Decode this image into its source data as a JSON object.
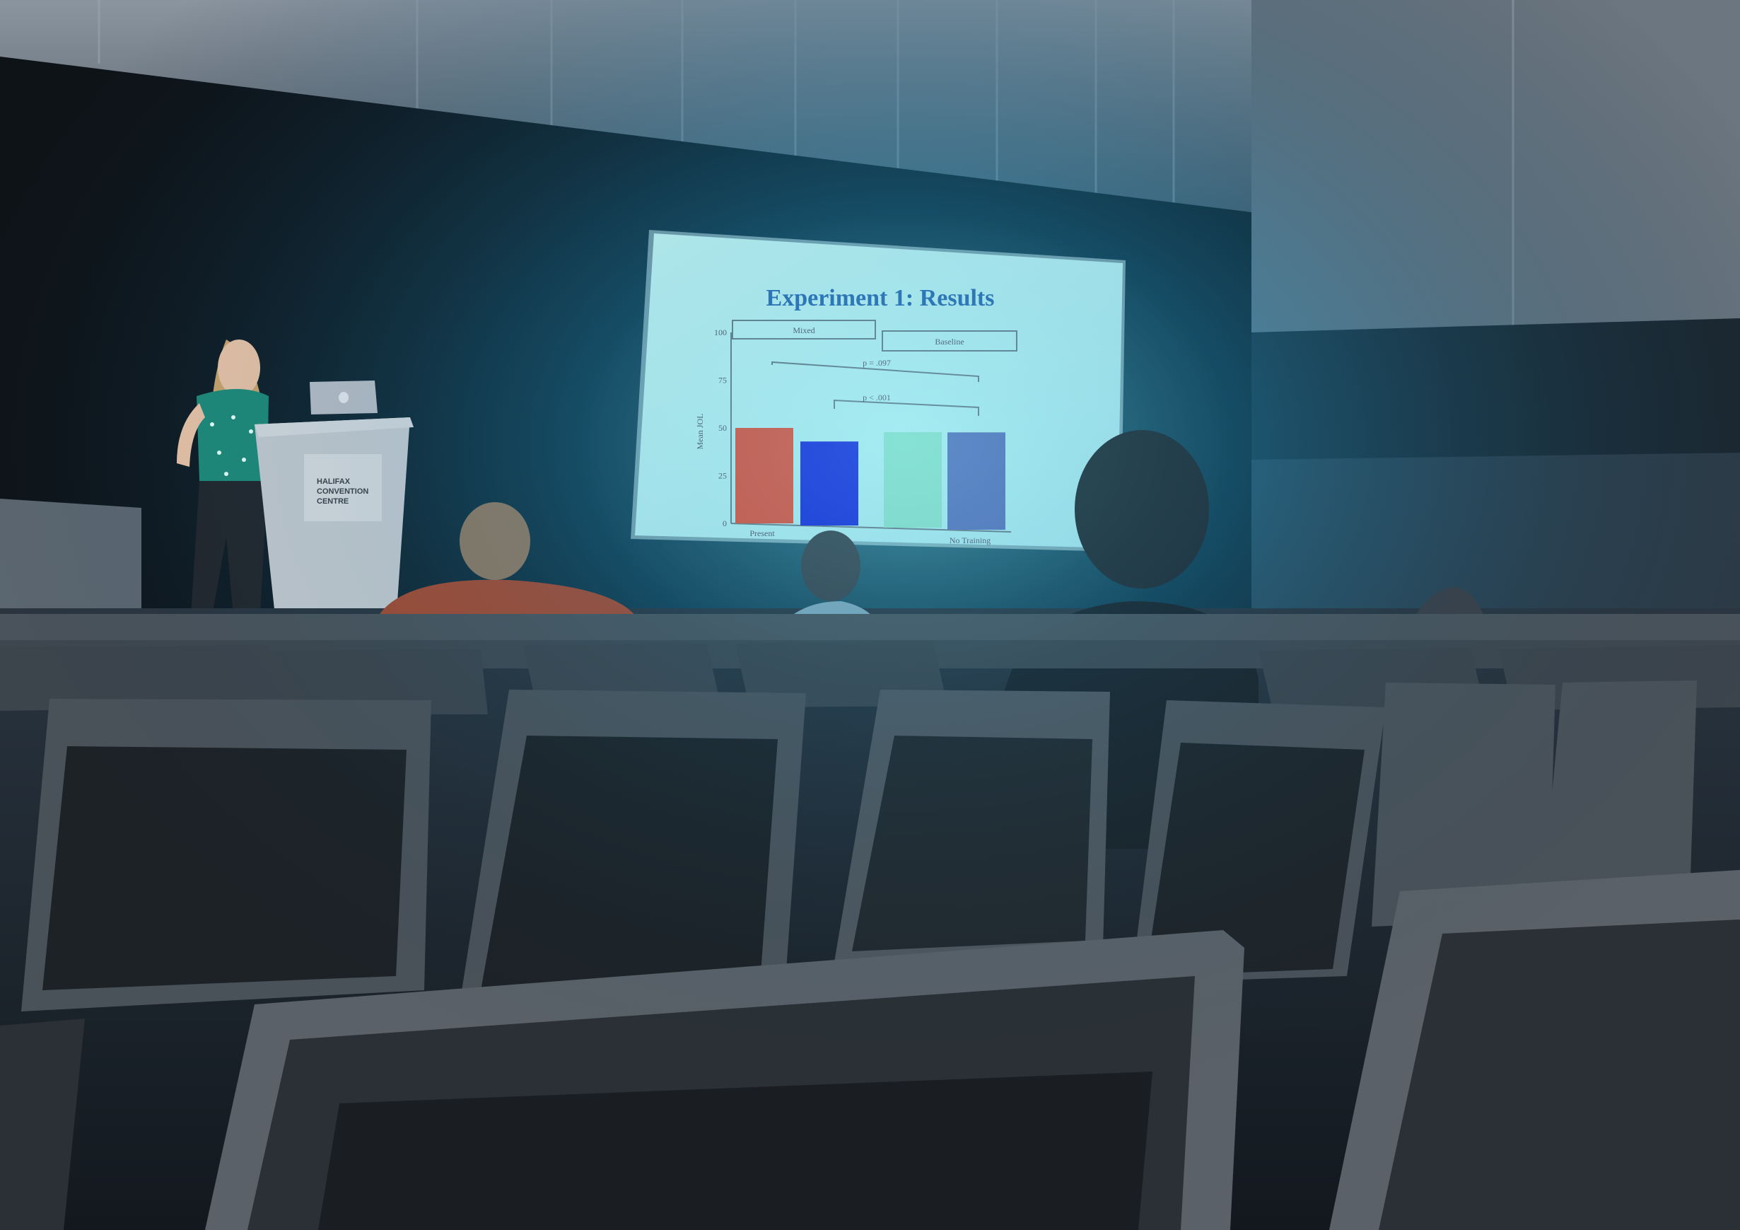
{
  "slide": {
    "title": "Experiment 1: Results",
    "panel_left_label": "Mixed",
    "panel_right_label": "Baseline",
    "ylabel": "Mean JOL",
    "y_ticks": [
      "100",
      "75",
      "50",
      "25",
      "0"
    ],
    "sig_top": "p = .097",
    "sig_bottom": "p < .001",
    "x_label_left": "Present",
    "x_label_right": "No Training"
  },
  "podium": {
    "line1": "HALIFAX",
    "line2": "CONVENTION",
    "line3": "CENTRE"
  },
  "chart_data": {
    "type": "bar",
    "title": "Experiment 1: Results",
    "ylabel": "Mean JOL",
    "ylim": [
      0,
      100
    ],
    "panels": [
      "Mixed",
      "Baseline"
    ],
    "categories": [
      "Present",
      "",
      "",
      "No Training"
    ],
    "values": [
      50,
      44,
      50,
      51
    ],
    "colors": [
      "#e0503a",
      "#1a2ad8",
      "#8fe0c8",
      "#5a70b8"
    ]
  }
}
